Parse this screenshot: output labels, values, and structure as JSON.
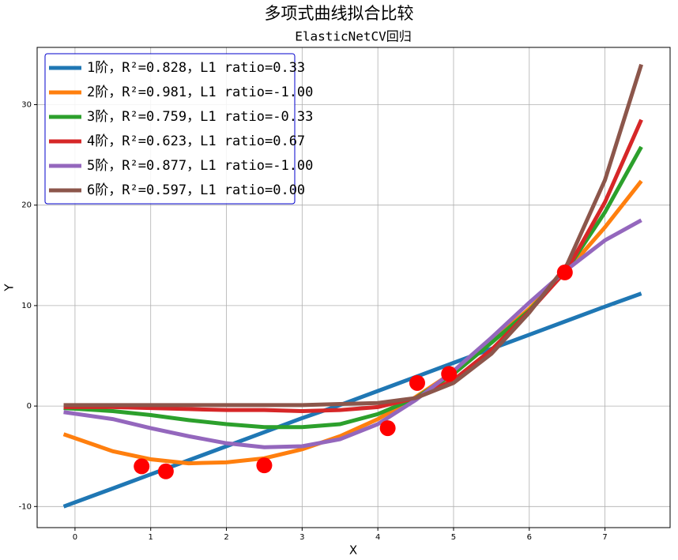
{
  "chart_data": {
    "type": "line",
    "title": "多项式曲线拟合比较",
    "subtitle": "ElasticNetCV回归",
    "x_label": "X",
    "y_label": "Y",
    "x": [
      -0.15,
      0.5,
      1,
      1.5,
      2,
      2.5,
      3,
      3.5,
      4,
      4.5,
      5,
      5.5,
      6,
      6.5,
      7,
      7.48
    ],
    "series": [
      {
        "name": "1阶，R²=0.828，L1 ratio=0.33",
        "color": "#1f77b4",
        "values": [
          -10,
          -8.2,
          -6.8,
          -5.4,
          -4.0,
          -2.6,
          -1.2,
          0.1,
          1.5,
          2.9,
          4.3,
          5.7,
          7.1,
          8.5,
          9.9,
          11.2
        ]
      },
      {
        "name": "2阶，R²=0.981，L1 ratio=-1.00",
        "color": "#ff7f0e",
        "values": [
          -2.8,
          -4.5,
          -5.3,
          -5.7,
          -5.6,
          -5.2,
          -4.3,
          -3.0,
          -1.3,
          0.9,
          3.4,
          6.4,
          9.7,
          13.5,
          17.8,
          22.4
        ]
      },
      {
        "name": "3阶，R²=0.759，L1 ratio=-0.33",
        "color": "#2ca02c",
        "values": [
          -0.2,
          -0.5,
          -0.9,
          -1.4,
          -1.8,
          -2.1,
          -2.1,
          -1.8,
          -0.8,
          0.8,
          3.2,
          6.3,
          9.5,
          13.6,
          19.3,
          25.8
        ]
      },
      {
        "name": "4阶，R²=0.623，L1 ratio=0.67",
        "color": "#d62728",
        "values": [
          -0.1,
          -0.1,
          -0.2,
          -0.3,
          -0.4,
          -0.4,
          -0.5,
          -0.4,
          -0.1,
          0.8,
          2.6,
          5.6,
          9.4,
          13.6,
          20.3,
          28.5
        ]
      },
      {
        "name": "5阶，R²=0.877，L1 ratio=-1.00",
        "color": "#9467bd",
        "values": [
          -0.6,
          -1.3,
          -2.2,
          -3.0,
          -3.7,
          -4.1,
          -4.0,
          -3.3,
          -1.8,
          0.6,
          3.5,
          6.8,
          10.3,
          13.6,
          16.5,
          18.5
        ]
      },
      {
        "name": "6阶，R²=0.597，L1 ratio=0.00",
        "color": "#8c564b",
        "values": [
          0.1,
          0.1,
          0.1,
          0.1,
          0.1,
          0.1,
          0.1,
          0.2,
          0.3,
          0.8,
          2.3,
          5.2,
          9.3,
          14.1,
          22.5,
          34
        ]
      }
    ],
    "points": {
      "color": "#ff0000",
      "x": [
        0.88,
        1.2,
        2.5,
        4.13,
        4.52,
        4.94,
        6.47
      ],
      "y": [
        -6.0,
        -6.5,
        -5.9,
        -2.2,
        2.3,
        3.2,
        13.3
      ]
    },
    "xlim": [
      -0.5,
      7.86
    ],
    "ylim": [
      -12.1,
      35.7
    ],
    "xticks": [
      0,
      1,
      2,
      3,
      4,
      5,
      6,
      7
    ],
    "yticks": [
      -10,
      0,
      10,
      20,
      30
    ],
    "grid": true,
    "legend": "upper left"
  }
}
